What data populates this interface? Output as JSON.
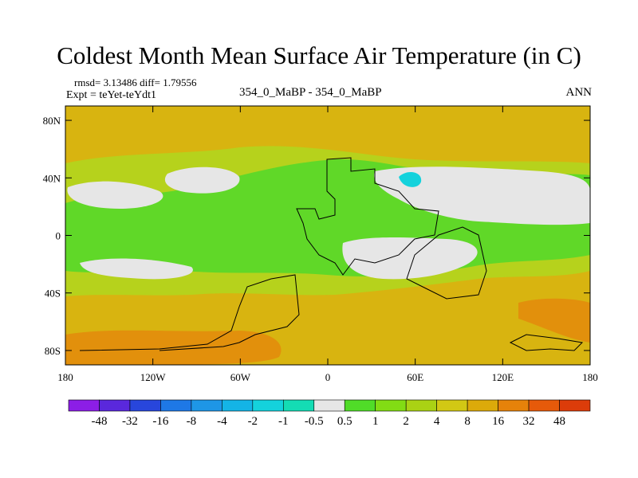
{
  "chart_data": {
    "type": "contour_map",
    "title": "Coldest Month Mean Surface Air Temperature (in C)",
    "stats": "rmsd= 3.13486 diff= 1.79556",
    "experiment": "Expt = teYet-teYdt1",
    "comparison": "354_0_MaBP - 354_0_MaBP",
    "period": "ANN",
    "x_axis": {
      "range": [
        -180,
        180
      ],
      "ticks": [
        {
          "value": -180,
          "label": "180"
        },
        {
          "value": -120,
          "label": "120W"
        },
        {
          "value": -60,
          "label": "60W"
        },
        {
          "value": 0,
          "label": "0"
        },
        {
          "value": 60,
          "label": "60E"
        },
        {
          "value": 120,
          "label": "120E"
        },
        {
          "value": 180,
          "label": "180"
        }
      ]
    },
    "y_axis": {
      "range": [
        -90,
        90
      ],
      "ticks": [
        {
          "value": 80,
          "label": "80N"
        },
        {
          "value": 40,
          "label": "40N"
        },
        {
          "value": 0,
          "label": "0"
        },
        {
          "value": -40,
          "label": "40S"
        },
        {
          "value": -80,
          "label": "80S"
        }
      ]
    },
    "colorbar": {
      "colors": [
        "#8c1ee6",
        "#5a28dc",
        "#2846dc",
        "#1e78e6",
        "#1e96e6",
        "#14b4e6",
        "#14d2dc",
        "#14dcb4",
        "#e6e6e6",
        "#50dc28",
        "#82dc14",
        "#aad214",
        "#d2c814",
        "#dcaa0a",
        "#e6820a",
        "#e65a0a",
        "#dc3c0a"
      ],
      "labels": [
        "-48",
        "-32",
        "-16",
        "-8",
        "-4",
        "-2",
        "-1",
        "-0.5",
        "0.5",
        "1",
        "2",
        "4",
        "8",
        "16",
        "32",
        "48"
      ]
    },
    "field_regions": [
      {
        "level": "4 to 8",
        "lon": [
          -180,
          180
        ],
        "lat": [
          -90,
          90
        ]
      },
      {
        "level": "2 to 4",
        "lon": [
          -180,
          180
        ],
        "lat": [
          -85,
          55
        ]
      },
      {
        "level": "1 to 2",
        "lon": [
          -180,
          180
        ],
        "lat": [
          -50,
          45
        ]
      },
      {
        "level": "-0.5 to 0.5",
        "lon": [
          -150,
          -90
        ],
        "lat": [
          10,
          35
        ]
      },
      {
        "level": "-0.5 to 0.5",
        "lon": [
          25,
          180
        ],
        "lat": [
          10,
          45
        ]
      },
      {
        "level": "-0.5 to 0.5",
        "lon": [
          10,
          100
        ],
        "lat": [
          -30,
          0
        ]
      },
      {
        "level": "-1 to -0.5",
        "lon": [
          45,
          65
        ],
        "lat": [
          30,
          45
        ]
      },
      {
        "level": "8 to 16",
        "lon": [
          -180,
          -60
        ],
        "lat": [
          -85,
          -70
        ]
      },
      {
        "level": "8 to 16",
        "lon": [
          140,
          180
        ],
        "lat": [
          -65,
          -40
        ]
      }
    ]
  }
}
